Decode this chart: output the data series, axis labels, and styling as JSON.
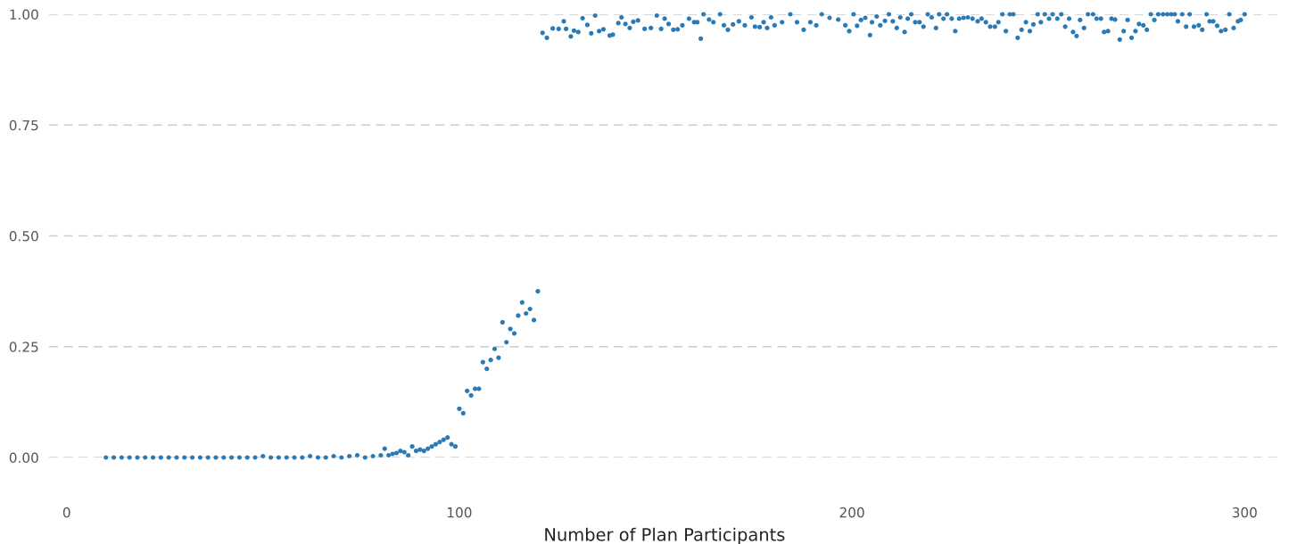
{
  "chart_data": {
    "type": "scatter",
    "xlabel": "Number of Plan Participants",
    "xlim": [
      -4.5,
      309
    ],
    "xticks": [
      0,
      100,
      200,
      300
    ],
    "ylim": [
      0,
      1
    ],
    "yticks": [
      {
        "value": 0,
        "label": "0.00"
      },
      {
        "value": 0.25,
        "label": "0.25"
      },
      {
        "value": 0.5,
        "label": "0.50"
      },
      {
        "value": 0.75,
        "label": "0.75"
      },
      {
        "value": 1,
        "label": "1.00"
      }
    ],
    "grid": "y",
    "marker": "circle",
    "series": [
      {
        "color": "#2a7ab6",
        "x": [
          10,
          12,
          14,
          16,
          18,
          20,
          22,
          24,
          26,
          28,
          30,
          32,
          34,
          36,
          38,
          40,
          42,
          44,
          46,
          48,
          50,
          52,
          54,
          56,
          58,
          60,
          62,
          64,
          66,
          68,
          70,
          72,
          74,
          76,
          78,
          80,
          81,
          82,
          83,
          84,
          85,
          86,
          87,
          88,
          89,
          90,
          91,
          92,
          93,
          94,
          95,
          96,
          97,
          98,
          99,
          100,
          101,
          102,
          103,
          104,
          105,
          106,
          107,
          108,
          109,
          110,
          111,
          112,
          113,
          114,
          115,
          116,
          117,
          118,
          119,
          120,
          121.2,
          122.3,
          123.8,
          125.3,
          126.6,
          127.2,
          128.4,
          129.2,
          130.3,
          131.4,
          132.6,
          133.6,
          134.6,
          135.6,
          136.7,
          138.3,
          139.1,
          140.5,
          141.3,
          142.3,
          143.4,
          144.3,
          145.5,
          147.2,
          148.8,
          150.3,
          151.4,
          152.3,
          153.3,
          154.5,
          155.6,
          156.8,
          158.5,
          159.8,
          160.6,
          161.5,
          162.2,
          163.6,
          164.7,
          166.4,
          167.4,
          168.4,
          169.7,
          171.2,
          172.7,
          174.4,
          175.3,
          176.5,
          177.5,
          178.4,
          179.4,
          180.3,
          182.2,
          184.3,
          186,
          187.7,
          189.4,
          190.9,
          192.3,
          194.3,
          196.5,
          198.3,
          199.3,
          200.4,
          201.3,
          202.3,
          203.4,
          204.6,
          205.1,
          206.3,
          207.2,
          208.4,
          209.4,
          210.4,
          211.4,
          212.3,
          213.4,
          214.2,
          215.1,
          216.1,
          217.2,
          218.2,
          219.3,
          220.3,
          221.4,
          222.2,
          223.3,
          224.2,
          225.4,
          226.3,
          227.3,
          228.4,
          229.5,
          230.7,
          232,
          233,
          234.1,
          235.2,
          236.4,
          237.3,
          238.3,
          239.2,
          240.2,
          241.1,
          242.2,
          243.2,
          244.3,
          245.3,
          246.2,
          247.3,
          248.1,
          249.1,
          250.2,
          251.1,
          252.3,
          253.3,
          254.3,
          255.3,
          256.3,
          257.2,
          258.1,
          259.1,
          260.1,
          261.4,
          262.3,
          263.4,
          264.2,
          265.2,
          266.1,
          267,
          268.2,
          269.2,
          270.2,
          271.2,
          272.2,
          273.1,
          274.2,
          275.1,
          276.1,
          277,
          278,
          279.2,
          280.3,
          281.3,
          282.2,
          283,
          284.1,
          285.1,
          286,
          287.1,
          288.3,
          289.2,
          290.3,
          291.1,
          292,
          293,
          294,
          295.1,
          296.1,
          297.2,
          298.3,
          299,
          300
        ],
        "values": [
          0,
          0,
          0,
          0,
          0,
          0,
          0,
          0,
          0,
          0,
          0,
          0,
          0,
          0,
          0,
          0,
          0,
          0,
          0,
          0,
          0.003,
          0,
          0,
          0,
          0,
          0,
          0.003,
          0,
          0,
          0.003,
          0,
          0.003,
          0.005,
          0,
          0.003,
          0.005,
          0.02,
          0.005,
          0.008,
          0.01,
          0.015,
          0.012,
          0.005,
          0.025,
          0.015,
          0.018,
          0.015,
          0.02,
          0.025,
          0.03,
          0.035,
          0.04,
          0.045,
          0.03,
          0.025,
          0.11,
          0.1,
          0.15,
          0.14,
          0.155,
          0.155,
          0.215,
          0.2,
          0.22,
          0.245,
          0.225,
          0.305,
          0.26,
          0.29,
          0.28,
          0.32,
          0.35,
          0.325,
          0.335,
          0.31,
          0.375,
          0.958,
          0.947,
          0.968,
          0.967,
          0.984,
          0.967,
          0.95,
          0.963,
          0.96,
          0.991,
          0.976,
          0.957,
          0.997,
          0.962,
          0.966,
          0.952,
          0.954,
          0.98,
          0.993,
          0.978,
          0.969,
          0.983,
          0.986,
          0.967,
          0.969,
          0.997,
          0.967,
          0.99,
          0.978,
          0.965,
          0.966,
          0.975,
          0.99,
          0.982,
          0.982,
          0.945,
          1.0,
          0.988,
          0.982,
          1.0,
          0.975,
          0.965,
          0.977,
          0.984,
          0.975,
          0.993,
          0.972,
          0.971,
          0.982,
          0.969,
          0.993,
          0.975,
          0.982,
          1.0,
          0.982,
          0.965,
          0.982,
          0.975,
          1.0,
          0.992,
          0.988,
          0.975,
          0.962,
          1.0,
          0.974,
          0.987,
          0.992,
          0.953,
          0.982,
          0.995,
          0.975,
          0.985,
          1.0,
          0.984,
          0.969,
          0.993,
          0.96,
          0.99,
          1.0,
          0.982,
          0.982,
          0.972,
          1.0,
          0.993,
          0.969,
          1.0,
          0.99,
          1.0,
          0.99,
          0.962,
          0.99,
          0.992,
          0.993,
          0.99,
          0.984,
          0.99,
          0.982,
          0.972,
          0.972,
          0.982,
          1.0,
          0.962,
          1.0,
          1.0,
          0.947,
          0.965,
          0.982,
          0.962,
          0.977,
          1.0,
          0.982,
          1.0,
          0.99,
          1.0,
          0.99,
          1.0,
          0.972,
          0.99,
          0.96,
          0.951,
          0.987,
          0.969,
          1.0,
          1.0,
          0.99,
          0.99,
          0.96,
          0.962,
          0.99,
          0.988,
          0.943,
          0.962,
          0.987,
          0.947,
          0.962,
          0.978,
          0.975,
          0.965,
          1.0,
          0.987,
          1.0,
          1.0,
          1.0,
          1.0,
          1.0,
          0.984,
          1.0,
          0.972,
          1.0,
          0.972,
          0.975,
          0.965,
          1.0,
          0.984,
          0.984,
          0.974,
          0.962,
          0.965,
          1.0,
          0.969,
          0.984,
          0.987,
          1.0
        ]
      }
    ]
  }
}
